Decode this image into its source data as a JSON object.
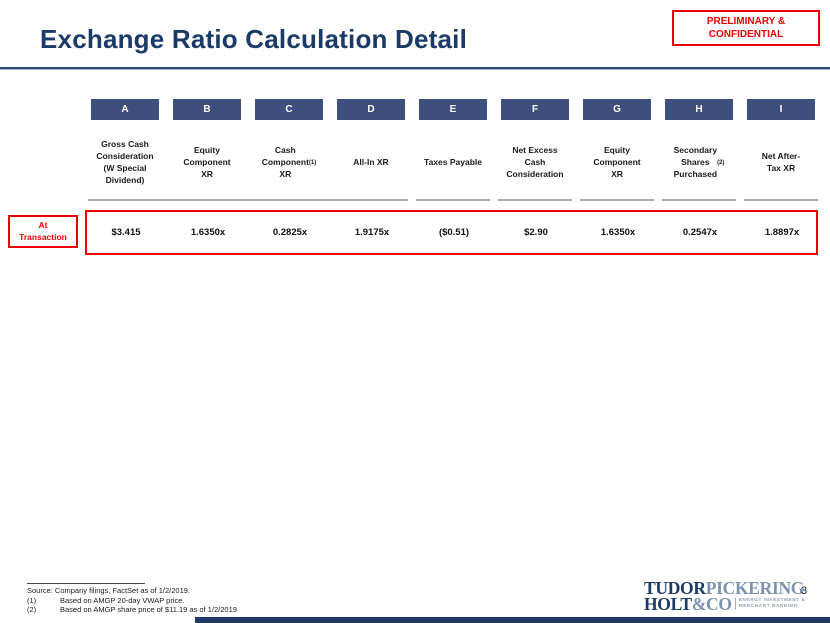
{
  "title": "Exchange Ratio Calculation Detail",
  "stamp": {
    "line1": "PRELIMINARY &",
    "line2": "CONFIDENTIAL"
  },
  "table": {
    "row_label": "At\nTransaction",
    "columns": [
      {
        "letter": "A",
        "header": "Gross Cash\nConsideration\n(W Special\nDividend)",
        "value": "$3.415"
      },
      {
        "letter": "B",
        "header": "Equity\nComponent\nXR",
        "value": "1.6350x"
      },
      {
        "letter": "C",
        "header": "Cash\nComponent\nXR",
        "sup": "(1)",
        "value": "0.2825x"
      },
      {
        "letter": "D",
        "header": "All-In XR",
        "value": "1.9175x"
      },
      {
        "letter": "E",
        "header": "Taxes Payable",
        "value": "($0.51)"
      },
      {
        "letter": "F",
        "header": "Net Excess\nCash\nConsideration",
        "value": "$2.90"
      },
      {
        "letter": "G",
        "header": "Equity\nComponent\nXR",
        "value": "1.6350x"
      },
      {
        "letter": "H",
        "header": "Secondary\nShares\nPurchased",
        "sup": "(2)",
        "value": "0.2547x"
      },
      {
        "letter": "I",
        "header": "Net After-\nTax XR",
        "value": "1.8897x"
      }
    ]
  },
  "footer": {
    "source": "Source: Company filings, FactSet as of 1/2/2019.",
    "notes": [
      {
        "num": "(1)",
        "text": "Based on AMGP 20-day VWAP price."
      },
      {
        "num": "(2)",
        "text": "Based on AMGP share price of $11.19 as of 1/2/2019"
      }
    ],
    "page_number": "3",
    "logo": {
      "tudor": "TUDOR",
      "pickering": "PICKERING",
      "holt": "HOLT",
      "amp_co": "&CO",
      "tagline1": "ENERGY INVESTMENT &",
      "tagline2": "MERCHANT BANKING"
    }
  },
  "colors": {
    "navy": "#1b3a66",
    "header_box": "#3e4f7e",
    "red": "#ee0000",
    "gray_line": "#a9a9a9",
    "logo_light_blue": "#7c92ad"
  }
}
